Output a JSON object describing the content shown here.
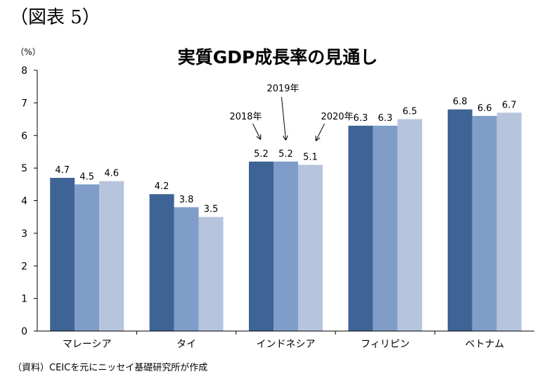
{
  "figure_label": "（図表 5）",
  "source": "（資料）CEICを元にニッセイ基礎研究所が作成",
  "chart_data": {
    "type": "bar",
    "title": "実質GDP成長率の見通し",
    "yunit": "（%）",
    "categories": [
      "マレーシア",
      "タイ",
      "インドネシア",
      "フィリピン",
      "ベトナム"
    ],
    "series": [
      {
        "name": "2018年",
        "values": [
          4.7,
          4.2,
          5.2,
          6.3,
          6.8
        ],
        "color": "#3e6496"
      },
      {
        "name": "2019年",
        "values": [
          4.5,
          3.8,
          5.2,
          6.3,
          6.6
        ],
        "color": "#7f9dc8"
      },
      {
        "name": "2020年",
        "values": [
          4.6,
          3.5,
          5.1,
          6.5,
          6.7
        ],
        "color": "#b6c4de"
      }
    ],
    "ylim": [
      0,
      8
    ],
    "yticks": [
      0,
      1,
      2,
      3,
      4,
      5,
      6,
      7,
      8
    ],
    "grid": false,
    "legend": "annotations-on-indonesia"
  }
}
